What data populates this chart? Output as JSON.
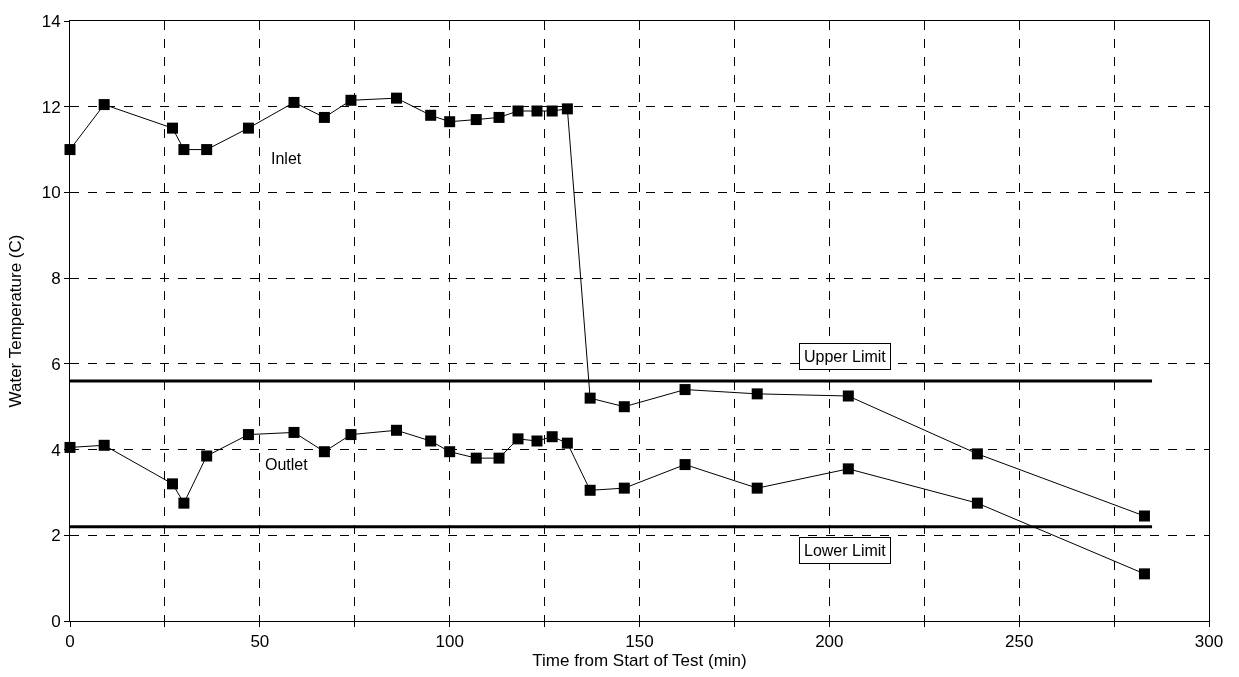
{
  "chart_data": {
    "type": "line",
    "xlabel": "Time from Start of Test (min)",
    "ylabel": "Water Temperature (C)",
    "xlim": [
      0,
      300
    ],
    "ylim": [
      0,
      14
    ],
    "xticks": [
      0,
      {
        "value": 25,
        "label": null
      },
      50,
      {
        "value": 75,
        "label": null
      },
      100,
      {
        "value": 125,
        "label": null
      },
      150,
      {
        "value": 175,
        "label": null
      },
      200,
      {
        "value": 225,
        "label": null
      },
      250,
      {
        "value": 275,
        "label": null
      },
      300
    ],
    "yticks": [
      0,
      2,
      4,
      6,
      8,
      10,
      12,
      14
    ],
    "grid": true,
    "legend": false,
    "marker": "square",
    "line_style": "solid",
    "series": [
      {
        "name": "Inlet",
        "color": "#000000",
        "x": [
          0,
          9,
          27,
          30,
          36,
          47,
          59,
          67,
          74,
          86,
          95,
          100,
          107,
          113,
          118,
          123,
          127,
          131,
          137,
          146,
          162,
          181,
          205,
          239,
          283
        ],
        "values": [
          11.0,
          12.05,
          11.5,
          11.0,
          11.0,
          11.5,
          12.1,
          11.75,
          12.15,
          12.2,
          11.8,
          11.65,
          11.7,
          11.75,
          11.9,
          11.9,
          11.9,
          11.95,
          5.2,
          5.0,
          5.4,
          5.3,
          5.25,
          3.9,
          2.45
        ]
      },
      {
        "name": "Outlet",
        "color": "#000000",
        "x": [
          0,
          9,
          27,
          30,
          36,
          47,
          59,
          67,
          74,
          86,
          95,
          100,
          107,
          113,
          118,
          123,
          127,
          131,
          137,
          146,
          162,
          181,
          205,
          239,
          283
        ],
        "values": [
          4.05,
          4.1,
          3.2,
          2.75,
          3.85,
          4.35,
          4.4,
          3.95,
          4.35,
          4.45,
          4.2,
          3.95,
          3.8,
          3.8,
          4.25,
          4.2,
          4.3,
          4.15,
          3.05,
          3.1,
          3.65,
          3.1,
          3.55,
          2.75,
          1.1
        ]
      }
    ],
    "ref_lines": [
      {
        "axis": "y",
        "value": 5.6,
        "label": "Upper Limit",
        "color": "#000000"
      },
      {
        "axis": "y",
        "value": 2.2,
        "label": "Lower Limit",
        "color": "#000000"
      }
    ]
  }
}
